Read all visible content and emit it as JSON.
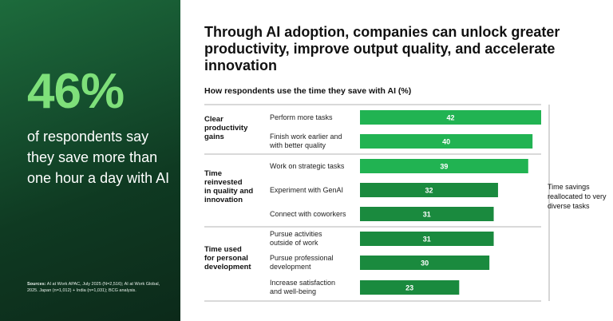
{
  "left_panel": {
    "stat": "46%",
    "stat_description": "of respondents say they save more than one hour a day with AI",
    "sources_label": "Sources:",
    "sources_text": "AI at Work APAC, July 2025 (N=2,516); AI at Work Global, 2025. Japan (n=1,012) + India (n=1,031); BCG analysis."
  },
  "headline": "Through AI adoption, companies can unlock greater productivity, improve output quality, and accelerate innovation",
  "subtitle": "How respondents use the time they save with AI (%)",
  "side_note": "Time savings reallocated to very diverse tasks",
  "colors": {
    "bar_green": "#21b352",
    "dark_green": "#1a8a3e",
    "stat_green": "#7ee07a"
  },
  "chart_data": {
    "type": "bar",
    "orientation": "horizontal",
    "title": "How respondents use the time they save with AI (%)",
    "groups": [
      {
        "name": "Clear productivity gains",
        "name_lines": [
          "Clear",
          "productivity",
          "gains"
        ],
        "items": [
          {
            "label": "Perform more tasks",
            "label_lines": [
              "Perform more tasks"
            ],
            "value": 42,
            "color": "#21b352"
          },
          {
            "label": "Finish work earlier and with better quality",
            "label_lines": [
              "Finish work earlier and",
              "with better quality"
            ],
            "value": 40,
            "color": "#21b352"
          }
        ]
      },
      {
        "name": "Time reinvested in quality and innovation",
        "name_lines": [
          "Time",
          "reinvested",
          "in quality and",
          "innovation"
        ],
        "items": [
          {
            "label": "Work on strategic tasks",
            "label_lines": [
              "Work on strategic tasks"
            ],
            "value": 39,
            "color": "#21b352"
          },
          {
            "label": "Experiment with GenAI",
            "label_lines": [
              "Experiment with GenAI"
            ],
            "value": 32,
            "color": "#1a8a3e"
          },
          {
            "label": "Connect with coworkers",
            "label_lines": [
              "Connect with coworkers"
            ],
            "value": 31,
            "color": "#1a8a3e"
          }
        ]
      },
      {
        "name": "Time used for personal development",
        "name_lines": [
          "Time used",
          "for personal",
          "development"
        ],
        "items": [
          {
            "label": "Pursue activities outside of work",
            "label_lines": [
              "Pursue activities",
              "outside of work"
            ],
            "value": 31,
            "color": "#1a8a3e"
          },
          {
            "label": "Pursue professional development",
            "label_lines": [
              "Pursue professional",
              "development"
            ],
            "value": 30,
            "color": "#1a8a3e"
          },
          {
            "label": "Increase satisfaction and well-being",
            "label_lines": [
              "Increase satisfaction",
              "and well-being"
            ],
            "value": 23,
            "color": "#1a8a3e"
          }
        ]
      }
    ],
    "xlim": [
      0,
      42
    ]
  }
}
